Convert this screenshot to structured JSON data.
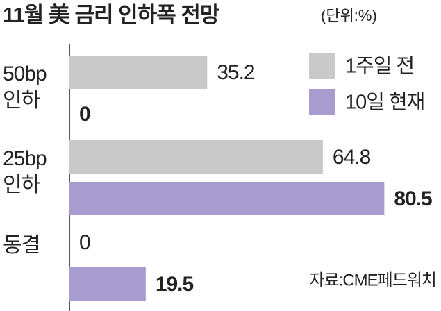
{
  "chart_data": {
    "type": "bar",
    "orientation": "horizontal",
    "title": "11월 美 금리 인하폭 전망",
    "unit": "(단위:%)",
    "categories": [
      "50bp 인하",
      "25bp 인하",
      "동결"
    ],
    "series": [
      {
        "name": "1주일 전",
        "color": "#c9c9c9",
        "values": [
          35.2,
          64.8,
          0
        ]
      },
      {
        "name": "10일 현재",
        "color": "#a89bcd",
        "values": [
          0,
          80.5,
          19.5
        ]
      }
    ],
    "xlim": [
      0,
      95
    ],
    "legend": "top-right",
    "source": "자료:CME페드워치"
  }
}
